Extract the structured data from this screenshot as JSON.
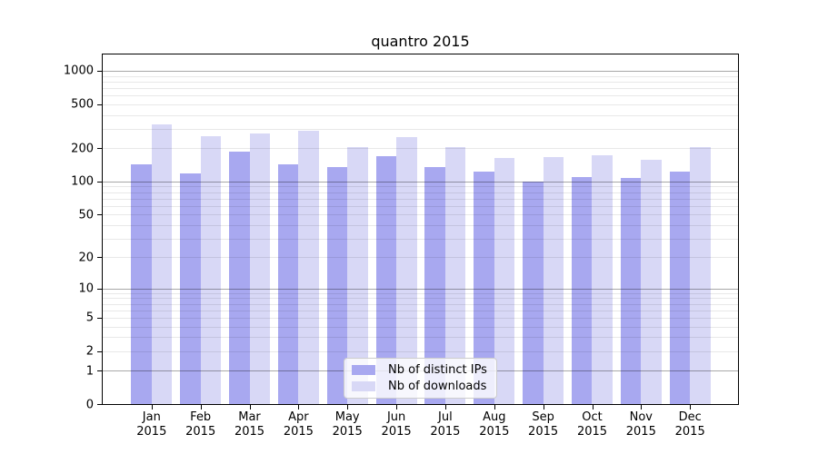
{
  "chart_data": {
    "type": "bar",
    "title": "quantro 2015",
    "categories": [
      "Jan 2015",
      "Feb 2015",
      "Mar 2015",
      "Apr 2015",
      "May 2015",
      "Jun 2015",
      "Jul 2015",
      "Aug 2015",
      "Sep 2015",
      "Oct 2015",
      "Nov 2015",
      "Dec 2015"
    ],
    "series": [
      {
        "name": "Nb of distinct IPs",
        "color": "#a8a8f0",
        "values": [
          142,
          119,
          185,
          144,
          135,
          168,
          135,
          123,
          100,
          109,
          108,
          122
        ]
      },
      {
        "name": "Nb of downloads",
        "color": "#d8d8f6",
        "values": [
          330,
          258,
          271,
          288,
          204,
          250,
          203,
          164,
          166,
          174,
          156,
          204
        ]
      }
    ],
    "xlabel": "",
    "ylabel": "",
    "yscale": "log1p",
    "ylim": [
      0,
      1400
    ],
    "yticks": [
      0,
      1,
      2,
      5,
      10,
      20,
      50,
      100,
      200,
      500,
      1000
    ],
    "grid": "horizontal, major and minor log lines drawn over bars",
    "legend_position": "lower center",
    "colors": {
      "distinct_ips_bar": "#a8a8f0",
      "downloads_bar": "#d8d8f6",
      "major_gridline": "#aeaeae",
      "minor_gridline": "#ebebeb",
      "axis_frame": "#000000",
      "background": "#ffffff"
    }
  }
}
